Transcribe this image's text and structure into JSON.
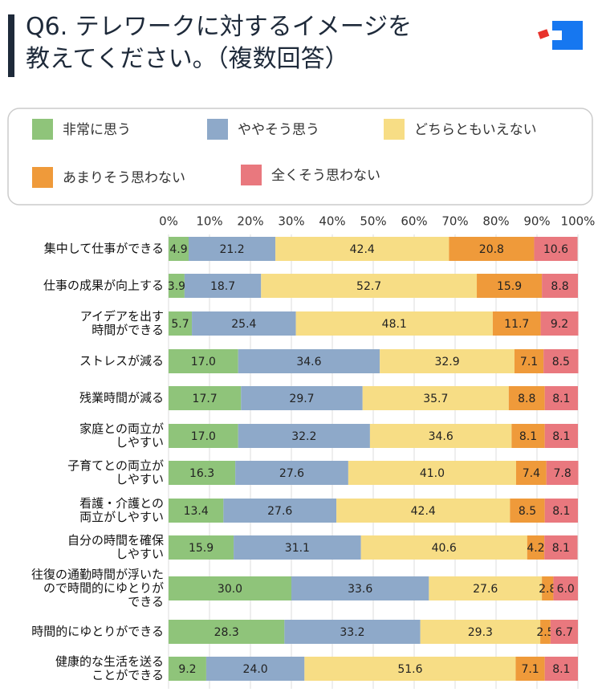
{
  "chart_data": {
    "type": "stacked-bar-horizontal",
    "title": "Q6. テレワークに対するイメージを\n教えてください。（複数回答）",
    "categories": [
      "集中して仕事ができる",
      "仕事の成果が向上する",
      "アイデアを出す\n時間ができる",
      "ストレスが減る",
      "残業時間が減る",
      "家庭との両立が\nしやすい",
      "子育てとの両立が\nしやすい",
      "看護・介護との\n両立がしやすい",
      "自分の時間を確保\nしやすい",
      "往復の通勤時間が浮いた\nので時間的にゆとりが\nできる",
      "時間的にゆとりができる",
      "健康的な生活を送る\nことができる"
    ],
    "series": [
      {
        "name": "非常に思う",
        "color": "#8fc47a",
        "values": [
          4.9,
          3.9,
          5.7,
          17.0,
          17.7,
          17.0,
          16.3,
          13.4,
          15.9,
          30.0,
          28.3,
          9.2
        ],
        "value_labels": [
          "4.9",
          "3.9",
          "5.7",
          "17.0",
          "17.7",
          "17.0",
          "16.3",
          "13.4",
          "15.9",
          "30.0",
          "28.3",
          "9.2"
        ]
      },
      {
        "name": "ややそう思う",
        "color": "#8ea9c9",
        "values": [
          21.2,
          18.7,
          25.4,
          34.6,
          29.7,
          32.2,
          27.6,
          27.6,
          31.1,
          33.6,
          33.2,
          24.0
        ],
        "value_labels": [
          "21.2",
          "18.7",
          "25.4",
          "34.6",
          "29.7",
          "32.2",
          "27.6",
          "27.6",
          "31.1",
          "33.6",
          "33.2",
          "24.0"
        ]
      },
      {
        "name": "どちらともいえない",
        "color": "#f7dd85",
        "values": [
          42.4,
          52.7,
          48.1,
          32.9,
          35.7,
          34.6,
          41.0,
          42.4,
          40.6,
          27.6,
          29.3,
          51.6
        ],
        "value_labels": [
          "42.4",
          "52.7",
          "48.1",
          "32.9",
          "35.7",
          "34.6",
          "41.0",
          "42.4",
          "40.6",
          "27.6",
          "29.3",
          "51.6"
        ]
      },
      {
        "name": "あまりそう思わない",
        "color": "#ef9a3a",
        "values": [
          20.8,
          15.9,
          11.7,
          7.1,
          8.8,
          8.1,
          7.4,
          8.5,
          4.2,
          2.8,
          2.5,
          7.1
        ],
        "value_labels": [
          "20.8",
          "15.9",
          "11.7",
          "7.1",
          "8.8",
          "8.1",
          "7.4",
          "8.5",
          "4.2",
          "2.8",
          "2.5",
          "7.1"
        ]
      },
      {
        "name": "全くそう思わない",
        "color": "#e9787e",
        "values": [
          10.6,
          8.8,
          9.2,
          8.5,
          8.1,
          8.1,
          7.8,
          8.1,
          8.1,
          6.0,
          6.7,
          8.1
        ],
        "value_labels": [
          "10.6",
          "8.8",
          "9.2",
          "8.5",
          "8.1",
          "8.1",
          "7.8",
          "8.1",
          "8.1",
          "6.0",
          "6.7",
          "8.1"
        ]
      }
    ],
    "xlim": [
      0,
      100
    ],
    "xticks": [
      {
        "value": 0,
        "label": "0%"
      },
      {
        "value": 10,
        "label": "10%"
      },
      {
        "value": 20,
        "label": "20%"
      },
      {
        "value": 30,
        "label": "30%"
      },
      {
        "value": 40,
        "label": "40%"
      },
      {
        "value": 50,
        "label": "50%"
      },
      {
        "value": 60,
        "label": "60%"
      },
      {
        "value": 70,
        "label": "70%"
      },
      {
        "value": 80,
        "label": "80%"
      },
      {
        "value": 90,
        "label": "90%"
      },
      {
        "value": 100,
        "label": "100%"
      }
    ],
    "grid": true
  }
}
